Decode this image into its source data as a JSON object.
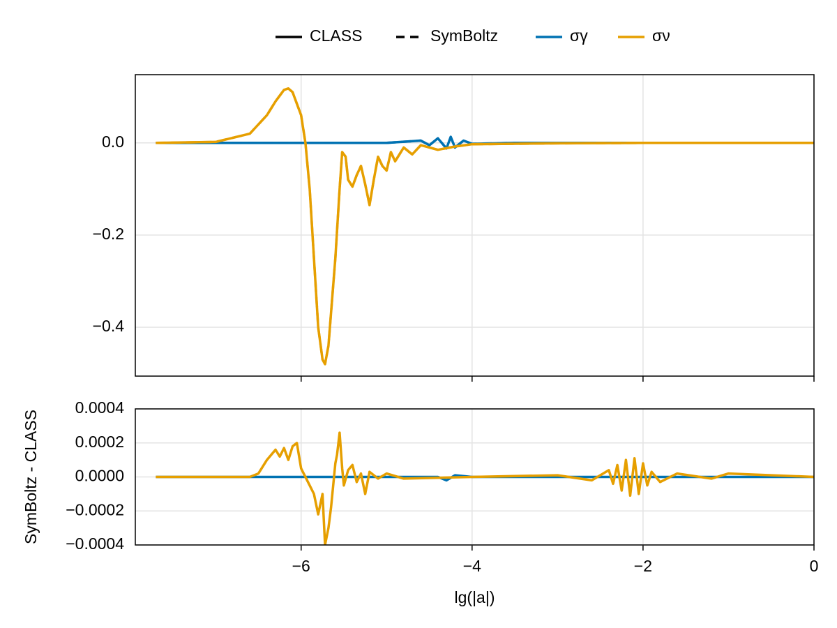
{
  "chart_data": [
    {
      "type": "line",
      "legend_styles": [
        {
          "name": "CLASS",
          "dash": "solid",
          "color": "#000000"
        },
        {
          "name": "SymBoltz",
          "dash": "dashed",
          "color": "#000000"
        }
      ],
      "xlim": [
        -7.94,
        0
      ],
      "xticks": [
        -6,
        -4,
        -2,
        0
      ],
      "ylim": [
        -0.506,
        0.148
      ],
      "yticks": [
        {
          "value": 0,
          "label": "0.0"
        },
        {
          "value": -0.2,
          "label": "−0.2"
        },
        {
          "value": -0.4,
          "label": "−0.4"
        }
      ],
      "grid": true,
      "series": [
        {
          "name": "σγ",
          "color": "#0072b2",
          "x": [
            -7.7,
            -5.0,
            -4.6,
            -4.5,
            -4.4,
            -4.3,
            -4.25,
            -4.2,
            -4.1,
            -4.0,
            -3.5,
            0
          ],
          "values": [
            0,
            0,
            0.005,
            -0.005,
            0.01,
            -0.012,
            0.013,
            -0.01,
            0.005,
            -0.002,
            0,
            0
          ]
        },
        {
          "name": "σν",
          "color": "#e69f00",
          "x": [
            -7.7,
            -7.0,
            -6.6,
            -6.4,
            -6.3,
            -6.2,
            -6.15,
            -6.1,
            -6.0,
            -5.95,
            -5.9,
            -5.85,
            -5.8,
            -5.75,
            -5.72,
            -5.68,
            -5.6,
            -5.55,
            -5.52,
            -5.48,
            -5.45,
            -5.4,
            -5.35,
            -5.3,
            -5.25,
            -5.2,
            -5.15,
            -5.1,
            -5.05,
            -5.0,
            -4.95,
            -4.9,
            -4.8,
            -4.7,
            -4.6,
            -4.4,
            -4.2,
            -4.0,
            -3.0,
            -2.0,
            0
          ],
          "values": [
            0,
            0.002,
            0.02,
            0.06,
            0.09,
            0.115,
            0.118,
            0.11,
            0.06,
            0.0,
            -0.1,
            -0.25,
            -0.4,
            -0.47,
            -0.48,
            -0.44,
            -0.25,
            -0.1,
            -0.02,
            -0.03,
            -0.08,
            -0.095,
            -0.07,
            -0.05,
            -0.09,
            -0.135,
            -0.08,
            -0.03,
            -0.05,
            -0.06,
            -0.02,
            -0.04,
            -0.01,
            -0.025,
            -0.005,
            -0.015,
            -0.008,
            -0.003,
            -0.001,
            0,
            0
          ]
        }
      ]
    },
    {
      "type": "line",
      "xlabel": "lg(|a|)",
      "ylabel": "SymBoltz - CLASS",
      "xlim": [
        -7.94,
        0
      ],
      "xticks": [
        {
          "value": -6,
          "label": "−6"
        },
        {
          "value": -4,
          "label": "−4"
        },
        {
          "value": -2,
          "label": "−2"
        },
        0
      ],
      "ylim": [
        -0.0004,
        0.0004
      ],
      "yticks": [
        0.0004,
        0.0002,
        {
          "value": 0,
          "label": "0.0000"
        },
        {
          "value": -0.0002,
          "label": "−0.0002"
        },
        {
          "value": -0.0004,
          "label": "−0.0004"
        }
      ],
      "grid": true,
      "series": [
        {
          "color": "#0072b2",
          "x": [
            -7.7,
            -4.4,
            -4.3,
            -4.2,
            -4.0,
            0
          ],
          "values": [
            0,
            0,
            -2e-05,
            1e-05,
            0,
            0
          ]
        },
        {
          "color": "#e69f00",
          "x": [
            -7.7,
            -6.6,
            -6.5,
            -6.4,
            -6.3,
            -6.25,
            -6.2,
            -6.15,
            -6.1,
            -6.05,
            -6.0,
            -5.9,
            -5.85,
            -5.8,
            -5.75,
            -5.72,
            -5.68,
            -5.65,
            -5.6,
            -5.58,
            -5.55,
            -5.52,
            -5.5,
            -5.45,
            -5.4,
            -5.35,
            -5.3,
            -5.25,
            -5.2,
            -5.1,
            -5.0,
            -4.8,
            -4.0,
            -3.0,
            -2.6,
            -2.4,
            -2.35,
            -2.3,
            -2.25,
            -2.2,
            -2.15,
            -2.1,
            -2.05,
            -2.0,
            -1.95,
            -1.9,
            -1.8,
            -1.6,
            -1.2,
            -1.0,
            0
          ],
          "values": [
            0,
            0,
            2e-05,
            0.0001,
            0.00016,
            0.00012,
            0.00017,
            0.0001,
            0.00018,
            0.0002,
            5e-05,
            -5e-05,
            -0.0001,
            -0.00022,
            -0.0001,
            -0.0004,
            -0.0003,
            -0.00018,
            8e-05,
            0.00013,
            0.00026,
            5e-05,
            -5e-05,
            4e-05,
            7e-05,
            -3e-05,
            2e-05,
            -0.0001,
            3e-05,
            -1e-05,
            2e-05,
            -1e-05,
            0,
            1e-05,
            -2e-05,
            4e-05,
            -4e-05,
            7e-05,
            -8e-05,
            0.0001,
            -0.00011,
            0.00011,
            -0.0001,
            8e-05,
            -5e-05,
            3e-05,
            -3e-05,
            2e-05,
            -1e-05,
            2e-05,
            0
          ]
        }
      ]
    }
  ]
}
